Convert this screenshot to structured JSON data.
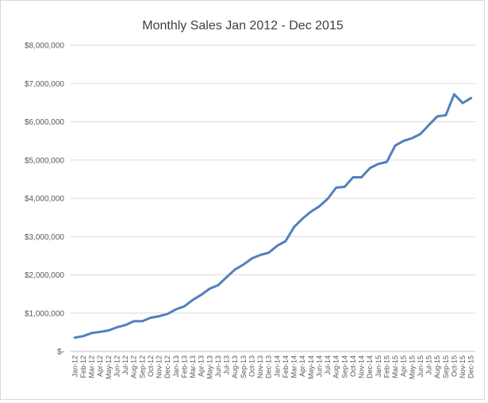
{
  "colors": {
    "series": "#4f81bd",
    "text": "#595959"
  },
  "chart_data": {
    "type": "line",
    "title": "Monthly Sales Jan 2012 - Dec 2015",
    "xlabel": "",
    "ylabel": "",
    "ylim": [
      0,
      8000000
    ],
    "yticks": [
      0,
      1000000,
      2000000,
      3000000,
      4000000,
      5000000,
      6000000,
      7000000,
      8000000
    ],
    "ytick_labels": [
      "$-",
      "$1,000,000",
      "$2,000,000",
      "$3,000,000",
      "$4,000,000",
      "$5,000,000",
      "$6,000,000",
      "$7,000,000",
      "$8,000,000"
    ],
    "grid": true,
    "legend": "none",
    "categories": [
      "Jan-12",
      "Feb-12",
      "Mar-12",
      "Apr-12",
      "May-12",
      "Jun-12",
      "Jul-12",
      "Aug-12",
      "Sep-12",
      "Oct-12",
      "Nov-12",
      "Dec-12",
      "Jan-13",
      "Feb-13",
      "Mar-13",
      "Apr-13",
      "May-13",
      "Jun-13",
      "Jul-13",
      "Aug-13",
      "Sep-13",
      "Oct-13",
      "Nov-13",
      "Dec-13",
      "Jan-14",
      "Feb-14",
      "Mar-14",
      "Apr-14",
      "May-14",
      "Jun-14",
      "Jul-14",
      "Aug-14",
      "Sep-14",
      "Oct-14",
      "Nov-14",
      "Dec-14",
      "Jan-15",
      "Feb-15",
      "Mar-15",
      "Apr-15",
      "May-15",
      "Jun-15",
      "Jul-15",
      "Aug-15",
      "Sep-15",
      "Oct-15",
      "Nov-15",
      "Dec-15"
    ],
    "series": [
      {
        "name": "Monthly Sales",
        "values": [
          360000,
          400000,
          480000,
          510000,
          550000,
          630000,
          690000,
          790000,
          790000,
          880000,
          920000,
          980000,
          1100000,
          1180000,
          1350000,
          1480000,
          1640000,
          1730000,
          1940000,
          2140000,
          2270000,
          2430000,
          2520000,
          2580000,
          2760000,
          2880000,
          3250000,
          3470000,
          3650000,
          3790000,
          3990000,
          4280000,
          4300000,
          4550000,
          4550000,
          4790000,
          4900000,
          4950000,
          5380000,
          5500000,
          5570000,
          5680000,
          5920000,
          6140000,
          6170000,
          6720000,
          6490000,
          6620000
        ]
      }
    ]
  }
}
